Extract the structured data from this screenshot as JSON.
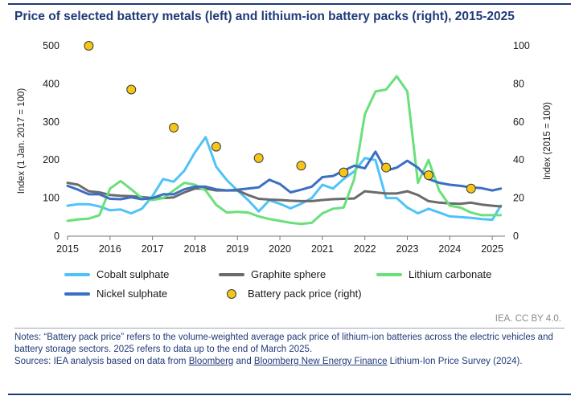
{
  "header": {
    "title": "Price of selected battery metals (left) and lithium-ion battery packs (right), 2015-2025"
  },
  "chart_data": {
    "type": "line",
    "xlim": [
      2015,
      2025.3
    ],
    "x_ticks": [
      "2015",
      "2016",
      "2017",
      "2018",
      "2019",
      "2020",
      "2021",
      "2022",
      "2023",
      "2024",
      "2025"
    ],
    "ylabel_left": "Index (1 Jan. 2017 = 100)",
    "ylim_left": [
      0,
      500
    ],
    "y_ticks_left": [
      "0",
      "100",
      "200",
      "300",
      "400",
      "500"
    ],
    "ylabel_right": "Index (2015 = 100)",
    "ylim_right": [
      0,
      100
    ],
    "y_ticks_right": [
      "0",
      "20",
      "40",
      "60",
      "80",
      "100"
    ],
    "grid": false,
    "legend_position": "bottom",
    "series": [
      {
        "name": "Cobalt sulphate",
        "color": "#4fc3f7",
        "axis": "left",
        "x": [
          2015,
          2015.25,
          2015.5,
          2015.75,
          2016,
          2016.25,
          2016.5,
          2016.75,
          2017,
          2017.25,
          2017.5,
          2017.75,
          2018,
          2018.25,
          2018.5,
          2018.75,
          2019,
          2019.25,
          2019.5,
          2019.75,
          2020,
          2020.25,
          2020.5,
          2020.75,
          2021,
          2021.25,
          2021.5,
          2021.75,
          2022,
          2022.25,
          2022.5,
          2022.75,
          2023,
          2023.25,
          2023.5,
          2023.75,
          2024,
          2024.25,
          2024.5,
          2024.75,
          2025,
          2025.2
        ],
        "y": [
          80,
          84,
          84,
          78,
          68,
          70,
          60,
          72,
          105,
          150,
          143,
          172,
          220,
          260,
          182,
          147,
          120,
          95,
          65,
          94,
          85,
          73,
          85,
          100,
          135,
          125,
          150,
          170,
          205,
          200,
          100,
          100,
          75,
          60,
          72,
          62,
          52,
          50,
          48,
          45,
          43,
          80
        ]
      },
      {
        "name": "Graphite sphere",
        "color": "#6b6b6b",
        "axis": "left",
        "x": [
          2015,
          2015.25,
          2015.5,
          2015.75,
          2016,
          2016.25,
          2016.5,
          2016.75,
          2017,
          2017.25,
          2017.5,
          2017.75,
          2018,
          2018.25,
          2018.5,
          2018.75,
          2019,
          2019.25,
          2019.5,
          2019.75,
          2020,
          2020.25,
          2020.5,
          2020.75,
          2021,
          2021.25,
          2021.5,
          2021.75,
          2022,
          2022.25,
          2022.5,
          2022.75,
          2023,
          2023.25,
          2023.5,
          2023.75,
          2024,
          2024.25,
          2024.5,
          2024.75,
          2025,
          2025.2
        ],
        "y": [
          140,
          135,
          118,
          115,
          108,
          106,
          105,
          103,
          100,
          100,
          102,
          115,
          125,
          125,
          120,
          120,
          120,
          108,
          98,
          96,
          95,
          93,
          92,
          92,
          95,
          97,
          98,
          99,
          118,
          115,
          112,
          112,
          118,
          108,
          92,
          88,
          86,
          85,
          88,
          83,
          80,
          78
        ]
      },
      {
        "name": "Lithium carbonate",
        "color": "#69e07a",
        "axis": "left",
        "x": [
          2015,
          2015.25,
          2015.5,
          2015.75,
          2016,
          2016.25,
          2016.5,
          2016.75,
          2017,
          2017.25,
          2017.5,
          2017.75,
          2018,
          2018.25,
          2018.5,
          2018.75,
          2019,
          2019.25,
          2019.5,
          2019.75,
          2020,
          2020.25,
          2020.5,
          2020.75,
          2021,
          2021.25,
          2021.5,
          2021.75,
          2022,
          2022.25,
          2022.5,
          2022.75,
          2023,
          2023.25,
          2023.5,
          2023.75,
          2024,
          2024.25,
          2024.5,
          2024.75,
          2025,
          2025.2
        ],
        "y": [
          40,
          44,
          46,
          55,
          125,
          145,
          123,
          100,
          95,
          100,
          120,
          140,
          135,
          120,
          82,
          62,
          64,
          62,
          52,
          45,
          40,
          35,
          32,
          35,
          60,
          72,
          75,
          150,
          320,
          380,
          385,
          420,
          380,
          140,
          200,
          120,
          80,
          75,
          62,
          55,
          55,
          55
        ]
      },
      {
        "name": "Nickel sulphate",
        "color": "#3a6fc4",
        "axis": "left",
        "x": [
          2015,
          2015.25,
          2015.5,
          2015.75,
          2016,
          2016.25,
          2016.5,
          2016.75,
          2017,
          2017.25,
          2017.5,
          2017.75,
          2018,
          2018.25,
          2018.5,
          2018.75,
          2019,
          2019.25,
          2019.5,
          2019.75,
          2020,
          2020.25,
          2020.5,
          2020.75,
          2021,
          2021.25,
          2021.5,
          2021.75,
          2022,
          2022.25,
          2022.5,
          2022.75,
          2023,
          2023.25,
          2023.5,
          2023.75,
          2024,
          2024.25,
          2024.5,
          2024.75,
          2025,
          2025.2
        ],
        "y": [
          132,
          122,
          110,
          110,
          98,
          97,
          102,
          97,
          100,
          110,
          110,
          123,
          130,
          130,
          123,
          120,
          122,
          125,
          128,
          148,
          137,
          115,
          122,
          130,
          155,
          158,
          172,
          185,
          178,
          222,
          172,
          180,
          198,
          180,
          150,
          140,
          135,
          132,
          128,
          126,
          120,
          125
        ]
      },
      {
        "name": "Battery pack price (right)",
        "color": "#f5c518",
        "axis": "right",
        "type": "scatter",
        "x": [
          2015.5,
          2016.5,
          2017.5,
          2018.5,
          2019.5,
          2020.5,
          2021.5,
          2022.5,
          2023.5,
          2024.5
        ],
        "y": [
          100,
          77,
          57,
          47,
          41,
          37,
          33.5,
          36,
          32,
          25
        ]
      }
    ]
  },
  "legend": {
    "cobalt": "Cobalt sulphate",
    "graphite": "Graphite sphere",
    "lithium": "Lithium carbonate",
    "nickel": "Nickel sulphate",
    "battery": "Battery pack price (right)"
  },
  "credit": "IEA. CC BY 4.0.",
  "notes": {
    "line1": "Notes: “Battery pack price” refers to the volume-weighted average pack price of lithium-ion batteries across the electric vehicles and battery storage sectors. 2025 refers to data up to the end of March 2025.",
    "sources_prefix": "Sources: IEA analysis based on data from ",
    "link1": "Bloomberg",
    "and_text": " and ",
    "link2": "Bloomberg New Energy Finance",
    "sources_suffix": " Lithium-Ion Price Survey (2024)."
  }
}
